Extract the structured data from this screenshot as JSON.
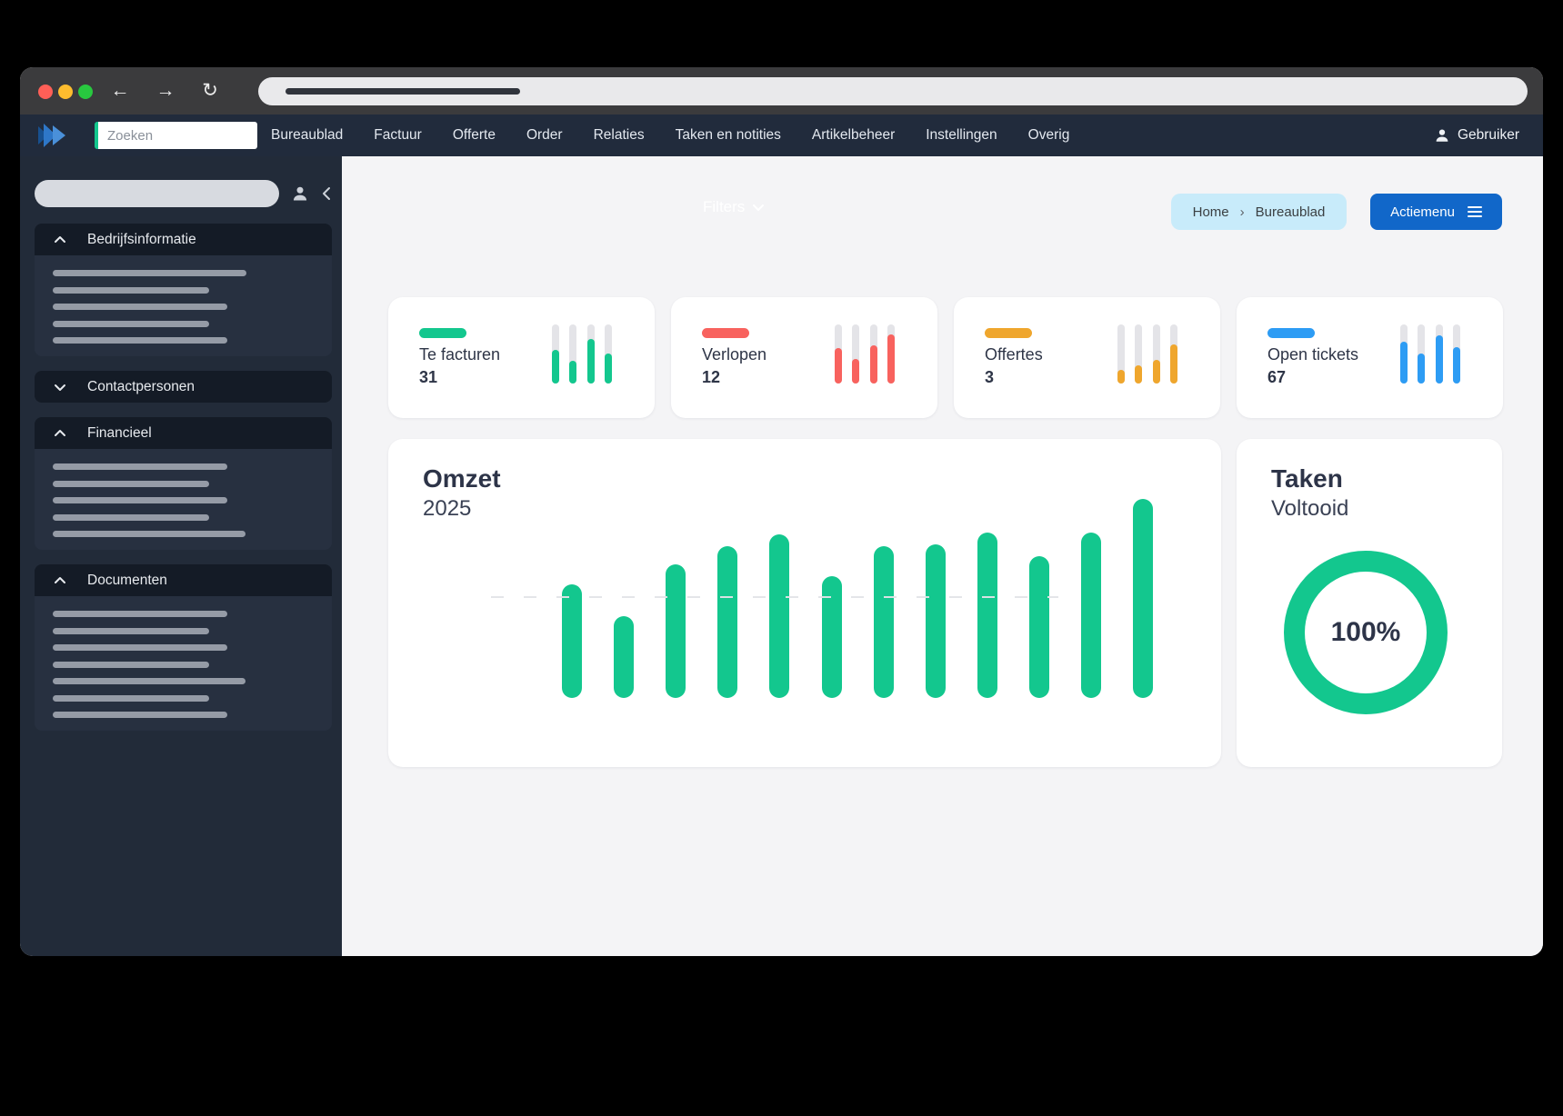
{
  "colors": {
    "green": "#13c78e",
    "red": "#f8625e",
    "orange": "#efa62d",
    "blue": "#2d9cf4",
    "button_blue": "#1167c9",
    "breadcrumb_bg": "#c8ebfa"
  },
  "navbar": {
    "search_placeholder": "Zoeken",
    "items": [
      "Bureaublad",
      "Factuur",
      "Offerte",
      "Order",
      "Relaties",
      "Taken en notities",
      "Artikelbeheer",
      "Instellingen",
      "Overig"
    ],
    "user_label": "Gebruiker"
  },
  "sidebar": {
    "sections": [
      {
        "label": "Bedrijfsinformatie",
        "expanded": true,
        "skeleton_widths": [
          213,
          172,
          192,
          172,
          192
        ]
      },
      {
        "label": "Contactpersonen",
        "expanded": false,
        "skeleton_widths": []
      },
      {
        "label": "Financieel",
        "expanded": true,
        "skeleton_widths": [
          192,
          172,
          192,
          172,
          212
        ]
      },
      {
        "label": "Documenten",
        "expanded": true,
        "skeleton_widths": [
          192,
          172,
          192,
          172,
          212,
          172,
          192
        ]
      }
    ]
  },
  "content": {
    "filters_label": "Filters",
    "breadcrumb": {
      "items": [
        "Home",
        "Bureaublad"
      ],
      "separator": "›"
    },
    "action_button_label": "Actiemenu"
  },
  "stat_cards": [
    {
      "label": "Te facturen",
      "value": "31",
      "color": "#13c78e",
      "bar_fill_percents": [
        57,
        38,
        75,
        50
      ]
    },
    {
      "label": "Verlopen",
      "value": "12",
      "color": "#f8625e",
      "bar_fill_percents": [
        60,
        42,
        64,
        83
      ]
    },
    {
      "label": "Offertes",
      "value": "3",
      "color": "#efa62d",
      "bar_fill_percents": [
        23,
        31,
        40,
        66
      ]
    },
    {
      "label": "Open tickets",
      "value": "67",
      "color": "#2d9cf4",
      "bar_fill_percents": [
        70,
        50,
        82,
        62
      ]
    }
  ],
  "chart_data": [
    {
      "type": "bar",
      "title": "Omzet",
      "subtitle": "2025",
      "bar_count": 12,
      "categories": [
        "",
        "",
        "",
        "",
        "",
        "",
        "",
        "",
        "",
        "",
        "",
        ""
      ],
      "values": [
        125,
        90,
        147,
        167,
        180,
        134,
        167,
        169,
        182,
        156,
        182,
        219
      ],
      "value_unit": "relative bar height (px), axes unlabeled in UI",
      "dashed_baseline_value": 111,
      "color": "#13c78e",
      "grid": false,
      "legend": false
    },
    {
      "type": "pie",
      "variant": "donut",
      "title": "Taken",
      "subtitle": "Voltooid",
      "percent": 100,
      "center_label": "100%",
      "color": "#13c78e",
      "legend": false
    }
  ]
}
